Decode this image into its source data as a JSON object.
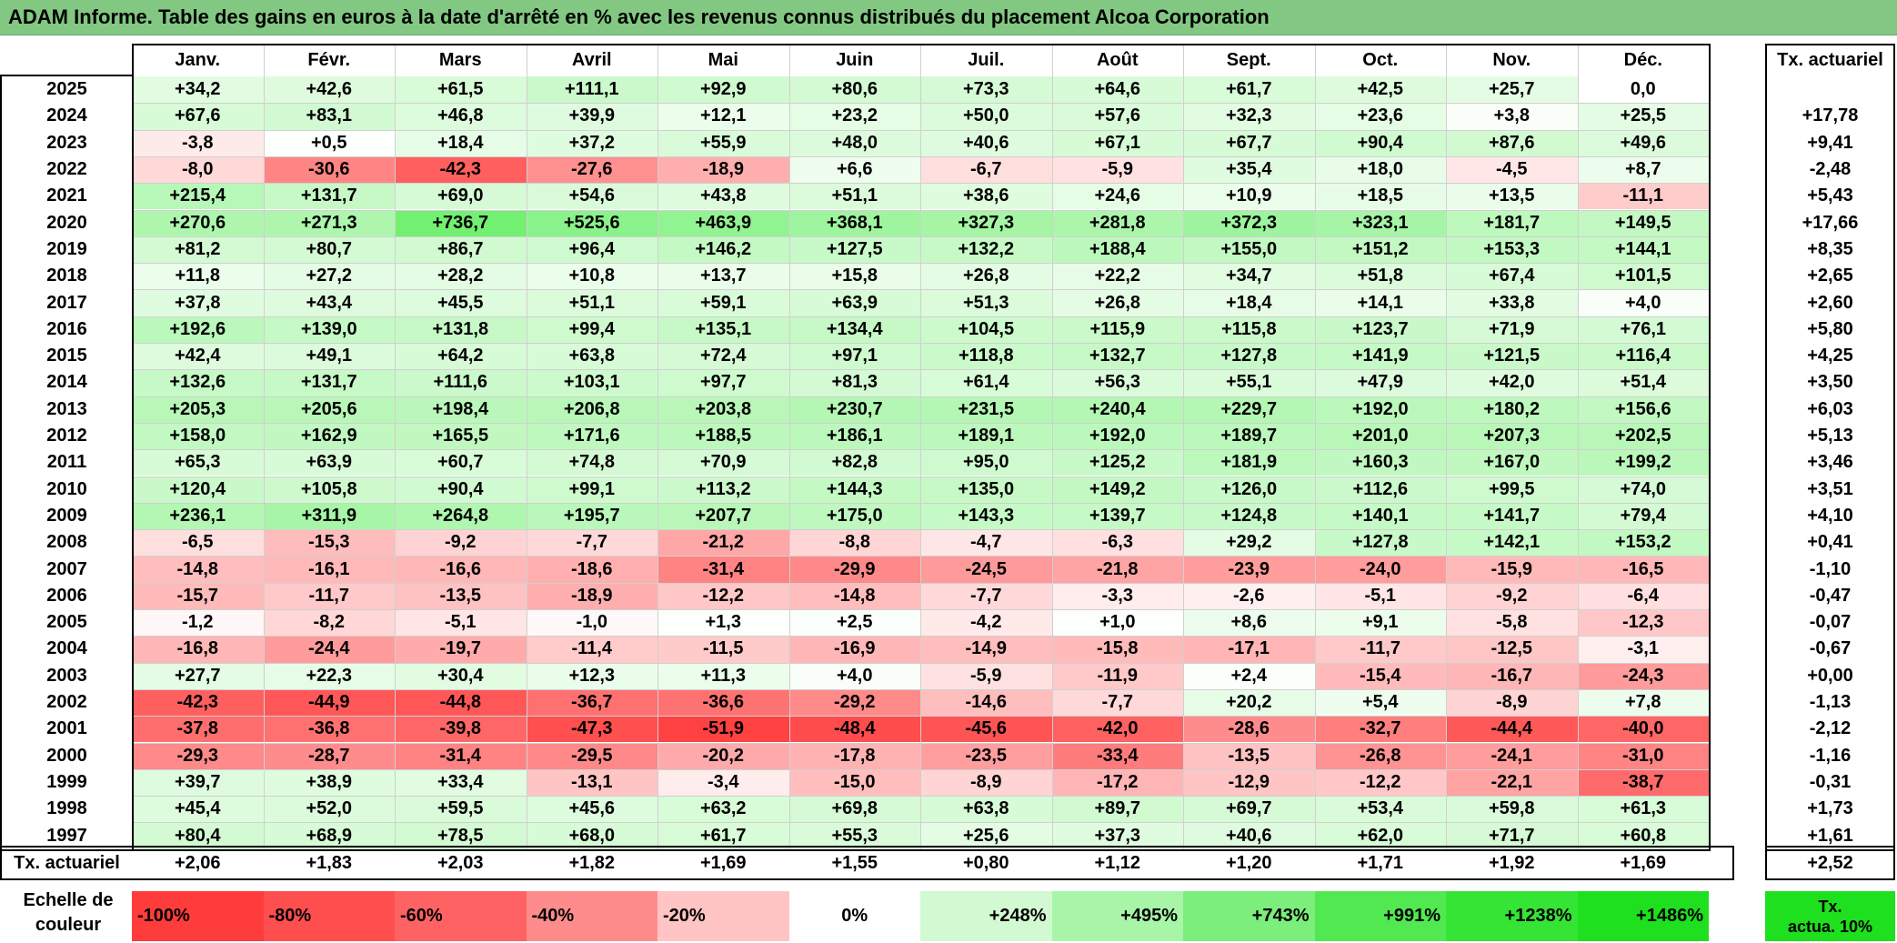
{
  "title": "ADAM Informe. Table des gains en euros à la date d'arrêté en % avec les revenus connus distribués du placement Alcoa Corporation",
  "months": [
    "Janv.",
    "Févr.",
    "Mars",
    "Avril",
    "Mai",
    "Juin",
    "Juil.",
    "Août",
    "Sept.",
    "Oct.",
    "Nov.",
    "Déc."
  ],
  "tx_header": "Tx. actuariel",
  "rows": [
    {
      "year": "2025",
      "values": [
        "+34,2",
        "+42,6",
        "+61,5",
        "+111,1",
        "+92,9",
        "+80,6",
        "+73,3",
        "+64,6",
        "+61,7",
        "+42,5",
        "+25,7",
        "0,0"
      ],
      "tx": ""
    },
    {
      "year": "2024",
      "values": [
        "+67,6",
        "+83,1",
        "+46,8",
        "+39,9",
        "+12,1",
        "+23,2",
        "+50,0",
        "+57,6",
        "+32,3",
        "+23,6",
        "+3,8",
        "+25,5"
      ],
      "tx": "+17,78"
    },
    {
      "year": "2023",
      "values": [
        "-3,8",
        "+0,5",
        "+18,4",
        "+37,2",
        "+55,9",
        "+48,0",
        "+40,6",
        "+67,1",
        "+67,7",
        "+90,4",
        "+87,6",
        "+49,6"
      ],
      "tx": "+9,41"
    },
    {
      "year": "2022",
      "values": [
        "-8,0",
        "-30,6",
        "-42,3",
        "-27,6",
        "-18,9",
        "+6,6",
        "-6,7",
        "-5,9",
        "+35,4",
        "+18,0",
        "-4,5",
        "+8,7"
      ],
      "tx": "-2,48"
    },
    {
      "year": "2021",
      "values": [
        "+215,4",
        "+131,7",
        "+69,0",
        "+54,6",
        "+43,8",
        "+51,1",
        "+38,6",
        "+24,6",
        "+10,9",
        "+18,5",
        "+13,5",
        "-11,1"
      ],
      "tx": "+5,43"
    },
    {
      "year": "2020",
      "values": [
        "+270,6",
        "+271,3",
        "+736,7",
        "+525,6",
        "+463,9",
        "+368,1",
        "+327,3",
        "+281,8",
        "+372,3",
        "+323,1",
        "+181,7",
        "+149,5"
      ],
      "tx": "+17,66"
    },
    {
      "year": "2019",
      "values": [
        "+81,2",
        "+80,7",
        "+86,7",
        "+96,4",
        "+146,2",
        "+127,5",
        "+132,2",
        "+188,4",
        "+155,0",
        "+151,2",
        "+153,3",
        "+144,1"
      ],
      "tx": "+8,35"
    },
    {
      "year": "2018",
      "values": [
        "+11,8",
        "+27,2",
        "+28,2",
        "+10,8",
        "+13,7",
        "+15,8",
        "+26,8",
        "+22,2",
        "+34,7",
        "+51,8",
        "+67,4",
        "+101,5"
      ],
      "tx": "+2,65"
    },
    {
      "year": "2017",
      "values": [
        "+37,8",
        "+43,4",
        "+45,5",
        "+51,1",
        "+59,1",
        "+63,9",
        "+51,3",
        "+26,8",
        "+18,4",
        "+14,1",
        "+33,8",
        "+4,0"
      ],
      "tx": "+2,60"
    },
    {
      "year": "2016",
      "values": [
        "+192,6",
        "+139,0",
        "+131,8",
        "+99,4",
        "+135,1",
        "+134,4",
        "+104,5",
        "+115,9",
        "+115,8",
        "+123,7",
        "+71,9",
        "+76,1"
      ],
      "tx": "+5,80"
    },
    {
      "year": "2015",
      "values": [
        "+42,4",
        "+49,1",
        "+64,2",
        "+63,8",
        "+72,4",
        "+97,1",
        "+118,8",
        "+132,7",
        "+127,8",
        "+141,9",
        "+121,5",
        "+116,4"
      ],
      "tx": "+4,25"
    },
    {
      "year": "2014",
      "values": [
        "+132,6",
        "+131,7",
        "+111,6",
        "+103,1",
        "+97,7",
        "+81,3",
        "+61,4",
        "+56,3",
        "+55,1",
        "+47,9",
        "+42,0",
        "+51,4"
      ],
      "tx": "+3,50"
    },
    {
      "year": "2013",
      "values": [
        "+205,3",
        "+205,6",
        "+198,4",
        "+206,8",
        "+203,8",
        "+230,7",
        "+231,5",
        "+240,4",
        "+229,7",
        "+192,0",
        "+180,2",
        "+156,6"
      ],
      "tx": "+6,03"
    },
    {
      "year": "2012",
      "values": [
        "+158,0",
        "+162,9",
        "+165,5",
        "+171,6",
        "+188,5",
        "+186,1",
        "+189,1",
        "+192,0",
        "+189,7",
        "+201,0",
        "+207,3",
        "+202,5"
      ],
      "tx": "+5,13"
    },
    {
      "year": "2011",
      "values": [
        "+65,3",
        "+63,9",
        "+60,7",
        "+74,8",
        "+70,9",
        "+82,8",
        "+95,0",
        "+125,2",
        "+181,9",
        "+160,3",
        "+167,0",
        "+199,2"
      ],
      "tx": "+3,46"
    },
    {
      "year": "2010",
      "values": [
        "+120,4",
        "+105,8",
        "+90,4",
        "+99,1",
        "+113,2",
        "+144,3",
        "+135,0",
        "+149,2",
        "+126,0",
        "+112,6",
        "+99,5",
        "+74,0"
      ],
      "tx": "+3,51"
    },
    {
      "year": "2009",
      "values": [
        "+236,1",
        "+311,9",
        "+264,8",
        "+195,7",
        "+207,7",
        "+175,0",
        "+143,3",
        "+139,7",
        "+124,8",
        "+140,1",
        "+141,7",
        "+79,4"
      ],
      "tx": "+4,10"
    },
    {
      "year": "2008",
      "values": [
        "-6,5",
        "-15,3",
        "-9,2",
        "-7,7",
        "-21,2",
        "-8,8",
        "-4,7",
        "-6,3",
        "+29,2",
        "+127,8",
        "+142,1",
        "+153,2"
      ],
      "tx": "+0,41"
    },
    {
      "year": "2007",
      "values": [
        "-14,8",
        "-16,1",
        "-16,6",
        "-18,6",
        "-31,4",
        "-29,9",
        "-24,5",
        "-21,8",
        "-23,9",
        "-24,0",
        "-15,9",
        "-16,5"
      ],
      "tx": "-1,10"
    },
    {
      "year": "2006",
      "values": [
        "-15,7",
        "-11,7",
        "-13,5",
        "-18,9",
        "-12,2",
        "-14,8",
        "-7,7",
        "-3,3",
        "-2,6",
        "-5,1",
        "-9,2",
        "-6,4"
      ],
      "tx": "-0,47"
    },
    {
      "year": "2005",
      "values": [
        "-1,2",
        "-8,2",
        "-5,1",
        "-1,0",
        "+1,3",
        "+2,5",
        "-4,2",
        "+1,0",
        "+8,6",
        "+9,1",
        "-5,8",
        "-12,3"
      ],
      "tx": "-0,07"
    },
    {
      "year": "2004",
      "values": [
        "-16,8",
        "-24,4",
        "-19,7",
        "-11,4",
        "-11,5",
        "-16,9",
        "-14,9",
        "-15,8",
        "-17,1",
        "-11,7",
        "-12,5",
        "-3,1"
      ],
      "tx": "-0,67"
    },
    {
      "year": "2003",
      "values": [
        "+27,7",
        "+22,3",
        "+30,4",
        "+12,3",
        "+11,3",
        "+4,0",
        "-5,9",
        "-11,9",
        "+2,4",
        "-15,4",
        "-16,7",
        "-24,3"
      ],
      "tx": "+0,00"
    },
    {
      "year": "2002",
      "values": [
        "-42,3",
        "-44,9",
        "-44,8",
        "-36,7",
        "-36,6",
        "-29,2",
        "-14,6",
        "-7,7",
        "+20,2",
        "+5,4",
        "-8,9",
        "+7,8"
      ],
      "tx": "-1,13"
    },
    {
      "year": "2001",
      "values": [
        "-37,8",
        "-36,8",
        "-39,8",
        "-47,3",
        "-51,9",
        "-48,4",
        "-45,6",
        "-42,0",
        "-28,6",
        "-32,7",
        "-44,4",
        "-40,0"
      ],
      "tx": "-2,12"
    },
    {
      "year": "2000",
      "values": [
        "-29,3",
        "-28,7",
        "-31,4",
        "-29,5",
        "-20,2",
        "-17,8",
        "-23,5",
        "-33,4",
        "-13,5",
        "-26,8",
        "-24,1",
        "-31,0"
      ],
      "tx": "-1,16"
    },
    {
      "year": "1999",
      "values": [
        "+39,7",
        "+38,9",
        "+33,4",
        "-13,1",
        "-3,4",
        "-15,0",
        "-8,9",
        "-17,2",
        "-12,9",
        "-12,2",
        "-22,1",
        "-38,7"
      ],
      "tx": "-0,31"
    },
    {
      "year": "1998",
      "values": [
        "+45,4",
        "+52,0",
        "+59,5",
        "+45,6",
        "+63,2",
        "+69,8",
        "+63,8",
        "+89,7",
        "+69,7",
        "+53,4",
        "+59,8",
        "+61,3"
      ],
      "tx": "+1,73"
    },
    {
      "year": "1997",
      "values": [
        "+80,4",
        "+68,9",
        "+78,5",
        "+68,0",
        "+61,7",
        "+55,3",
        "+25,6",
        "+37,3",
        "+40,6",
        "+62,0",
        "+71,7",
        "+60,8"
      ],
      "tx": "+1,61"
    }
  ],
  "footer": {
    "label": "Tx. actuariel",
    "values": [
      "+2,06",
      "+1,83",
      "+2,03",
      "+1,82",
      "+1,69",
      "+1,55",
      "+0,80",
      "+1,12",
      "+1,20",
      "+1,71",
      "+1,92",
      "+1,69"
    ],
    "tx": "+2,52"
  },
  "scale": {
    "label_line1": "Echelle de",
    "label_line2": "couleur",
    "cells": [
      {
        "text": "-100%",
        "color": "#ff3c3c",
        "align": "left"
      },
      {
        "text": "-80%",
        "color": "#ff4e4e",
        "align": "left"
      },
      {
        "text": "-60%",
        "color": "#ff6262",
        "align": "left"
      },
      {
        "text": "-40%",
        "color": "#ff8c8c",
        "align": "left"
      },
      {
        "text": "-20%",
        "color": "#ffc4c4",
        "align": "left"
      },
      {
        "text": "0%",
        "color": "#ffffff",
        "align": "center"
      },
      {
        "text": "+248%",
        "color": "#d2fad2",
        "align": "right"
      },
      {
        "text": "+495%",
        "color": "#a8f5a8",
        "align": "right"
      },
      {
        "text": "+743%",
        "color": "#7cee7c",
        "align": "right"
      },
      {
        "text": "+991%",
        "color": "#52e852",
        "align": "right"
      },
      {
        "text": "+1238%",
        "color": "#36e436",
        "align": "right"
      },
      {
        "text": "+1486%",
        "color": "#1ee01e",
        "align": "right"
      }
    ],
    "actua_line1": "Tx.",
    "actua_line2": "actua. 10%"
  }
}
